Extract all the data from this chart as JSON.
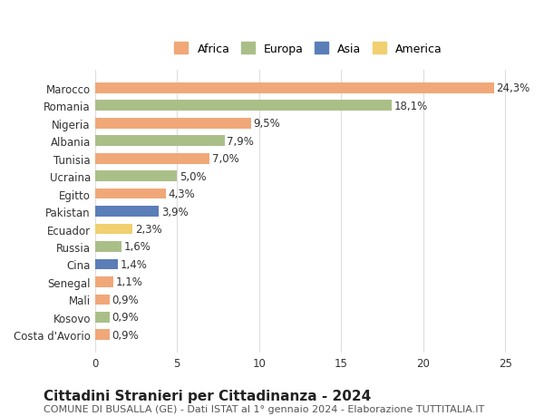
{
  "countries": [
    "Costa d'Avorio",
    "Kosovo",
    "Mali",
    "Senegal",
    "Cina",
    "Russia",
    "Ecuador",
    "Pakistan",
    "Egitto",
    "Ucraina",
    "Tunisia",
    "Albania",
    "Nigeria",
    "Romania",
    "Marocco"
  ],
  "values": [
    0.9,
    0.9,
    0.9,
    1.1,
    1.4,
    1.6,
    2.3,
    3.9,
    4.3,
    5.0,
    7.0,
    7.9,
    9.5,
    18.1,
    24.3
  ],
  "continents": [
    "Africa",
    "Europa",
    "Africa",
    "Africa",
    "Asia",
    "Europa",
    "America",
    "Asia",
    "Africa",
    "Europa",
    "Africa",
    "Europa",
    "Africa",
    "Europa",
    "Africa"
  ],
  "continent_colors": {
    "Africa": "#F0A878",
    "Europa": "#AABF88",
    "Asia": "#5B7DB8",
    "America": "#F0D070"
  },
  "legend_order": [
    "Africa",
    "Europa",
    "Asia",
    "America"
  ],
  "legend_colors": {
    "Africa": "#F0A878",
    "Europa": "#AABF88",
    "Asia": "#5B7DB8",
    "America": "#F0D070"
  },
  "xlim": [
    0,
    26
  ],
  "xticks": [
    0,
    5,
    10,
    15,
    20,
    25
  ],
  "title": "Cittadini Stranieri per Cittadinanza - 2024",
  "subtitle": "COMUNE DI BUSALLA (GE) - Dati ISTAT al 1° gennaio 2024 - Elaborazione TUTTITALIA.IT",
  "background_color": "#ffffff",
  "grid_color": "#dddddd",
  "bar_height": 0.6,
  "label_fontsize": 8.5,
  "title_fontsize": 11,
  "subtitle_fontsize": 8,
  "tick_fontsize": 8.5,
  "legend_fontsize": 9
}
